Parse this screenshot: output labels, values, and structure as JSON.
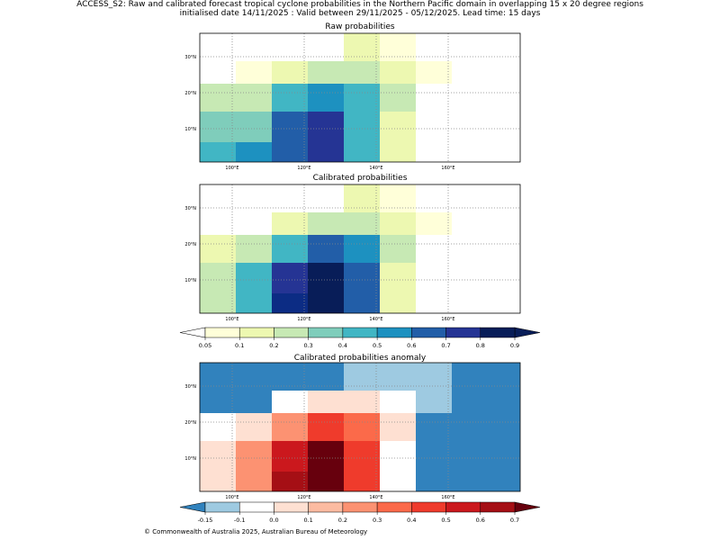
{
  "figure": {
    "title_line1": "ACCESS_S2: Raw and calibrated forecast tropical cyclone probabilities in the Northern Pacific domain in overlapping 15 x 20 degree regions",
    "title_line2": "initialised date 14/11/2025 :  Valid between 29/11/2025 - 05/12/2025. Lead time: 15 days",
    "copyright": "© Commonwealth of Australia 2025, Australian Bureau of Meteorology"
  },
  "map": {
    "lon_labels": [
      "100°E",
      "120°E",
      "140°E",
      "160°E"
    ],
    "lat_labels": [
      "30°N",
      "20°N",
      "10°N"
    ]
  },
  "panels": {
    "raw": {
      "title": "Raw probabilities",
      "rows": [
        [
          "#ffffff",
          "#ffffff",
          "#ffffff",
          "#ffffff",
          "#edf8b1",
          "#ffffd9",
          "#ffffff",
          "#ffffff",
          "#ffffff"
        ],
        [
          "#ffffff",
          "#ffffd9",
          "#edf8b1",
          "#c7e9b4",
          "#c7e9b4",
          "#edf8b1",
          "#ffffd9",
          "#ffffff",
          "#ffffff"
        ],
        [
          "#c7e9b4",
          "#c7e9b4",
          "#41b6c4",
          "#1d91c0",
          "#41b6c4",
          "#c7e9b4",
          "#ffffff",
          "#ffffff",
          "#ffffff"
        ],
        [
          "#7fcdbb",
          "#7fcdbb",
          "#225ea8",
          "#253494",
          "#41b6c4",
          "#edf8b1",
          "#ffffff",
          "#ffffff",
          "#ffffff"
        ],
        [
          "#41b6c4",
          "#1d91c0",
          "#225ea8",
          "#253494",
          "#41b6c4",
          "#edf8b1",
          "#ffffff",
          "#ffffff",
          "#ffffff"
        ]
      ]
    },
    "calibrated": {
      "title": "Calibrated probabilities",
      "rows": [
        [
          "#ffffff",
          "#ffffff",
          "#ffffff",
          "#ffffff",
          "#edf8b1",
          "#ffffd9",
          "#ffffff",
          "#ffffff",
          "#ffffff"
        ],
        [
          "#ffffff",
          "#ffffff",
          "#edf8b1",
          "#c7e9b4",
          "#c7e9b4",
          "#edf8b1",
          "#ffffd9",
          "#ffffff",
          "#ffffff"
        ],
        [
          "#edf8b1",
          "#c7e9b4",
          "#41b6c4",
          "#225ea8",
          "#1d91c0",
          "#c7e9b4",
          "#ffffff",
          "#ffffff",
          "#ffffff"
        ],
        [
          "#c7e9b4",
          "#41b6c4",
          "#253494",
          "#081d58",
          "#225ea8",
          "#edf8b1",
          "#ffffff",
          "#ffffff",
          "#ffffff"
        ],
        [
          "#c7e9b4",
          "#41b6c4",
          "#0c2c84",
          "#081d58",
          "#225ea8",
          "#edf8b1",
          "#ffffff",
          "#ffffff",
          "#ffffff"
        ]
      ]
    },
    "anomaly": {
      "title": "Calibrated probabilities anomaly",
      "rows": [
        [
          "#3182bd",
          "#3182bd",
          "#3182bd",
          "#3182bd",
          "#9ecae1",
          "#9ecae1",
          "#9ecae1",
          "#3182bd",
          "#3182bd"
        ],
        [
          "#3182bd",
          "#3182bd",
          "#ffffff",
          "#fee0d2",
          "#fee0d2",
          "#ffffff",
          "#9ecae1",
          "#3182bd",
          "#3182bd"
        ],
        [
          "#ffffff",
          "#fee0d2",
          "#fc9272",
          "#ef3b2c",
          "#fb6a4a",
          "#fee0d2",
          "#3182bd",
          "#3182bd",
          "#3182bd"
        ],
        [
          "#fee0d2",
          "#fc9272",
          "#cb181d",
          "#67000d",
          "#ef3b2c",
          "#ffffff",
          "#3182bd",
          "#3182bd",
          "#3182bd"
        ],
        [
          "#fee0d2",
          "#fc9272",
          "#a50f15",
          "#67000d",
          "#ef3b2c",
          "#ffffff",
          "#3182bd",
          "#3182bd",
          "#3182bd"
        ]
      ]
    }
  },
  "colorbar_prob": {
    "tick_labels": [
      "0.05",
      "0.1",
      "0.2",
      "0.3",
      "0.4",
      "0.5",
      "0.6",
      "0.7",
      "0.8",
      "0.9"
    ],
    "colors": [
      "#ffffd9",
      "#edf8b1",
      "#c7e9b4",
      "#7fcdbb",
      "#41b6c4",
      "#1d91c0",
      "#225ea8",
      "#253494",
      "#081d58"
    ],
    "under_color": "#ffffff",
    "over_color": "#081d58"
  },
  "colorbar_anom": {
    "tick_labels": [
      "-0.15",
      "-0.1",
      "0.0",
      "0.1",
      "0.2",
      "0.3",
      "0.4",
      "0.5",
      "0.6",
      "0.7"
    ],
    "colors": [
      "#9ecae1",
      "#ffffff",
      "#fee0d2",
      "#fcbba1",
      "#fc9272",
      "#fb6a4a",
      "#ef3b2c",
      "#cb181d",
      "#a50f15"
    ],
    "under_color": "#3182bd",
    "over_color": "#67000d"
  }
}
